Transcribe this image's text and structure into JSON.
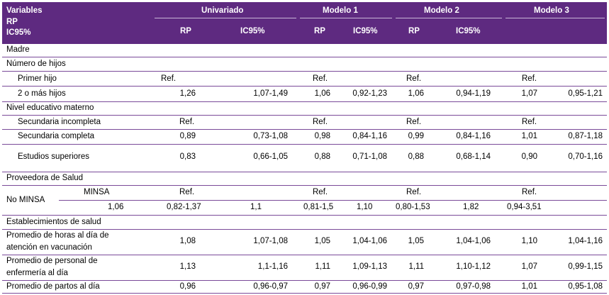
{
  "header": {
    "variables": "Variables",
    "rp_ic_line1": "RP",
    "rp_ic_line2": "IC95%",
    "groups": [
      "Univariado",
      "Modelo 1",
      "Modelo 2",
      "Modelo 3"
    ],
    "subcols": [
      "RP",
      "IC95%",
      "RP",
      "IC95%",
      "RP",
      "IC95%"
    ]
  },
  "rows": {
    "madre": "Madre",
    "numero_hijos": "Número de hijos",
    "primer_hijo": {
      "label": "Primer hijo",
      "u_rp": "Ref.",
      "m1_rp": "Ref.",
      "m2_rp": "Ref.",
      "m3_rp": "Ref."
    },
    "dos_mas": {
      "label": "2 o más hijos",
      "u_rp": "1,26",
      "u_ic": "1,07-1,49",
      "m1_rp": "1,06",
      "m1_ic": "0,92-1,23",
      "m2_rp": "1,06",
      "m2_ic": "0,94-1,19",
      "m3_rp": "1,07",
      "m3_ic": "0,95-1,21"
    },
    "nivel_educativo": "Nivel educativo materno",
    "sec_incompleta": {
      "label": "Secundaria incompleta",
      "u_rp": "Ref.",
      "m1_rp": "Ref.",
      "m2_rp": "Ref.",
      "m3_rp": "Ref."
    },
    "sec_completa": {
      "label": "Secundaria completa",
      "u_rp": "0,89",
      "u_ic": "0,73-1,08",
      "m1_rp": "0,98",
      "m1_ic": "0,84-1,16",
      "m2_rp": "0,99",
      "m2_ic": "0,84-1,16",
      "m3_rp": "1,01",
      "m3_ic": "0,87-1,18"
    },
    "superiores": {
      "label": "Estudios superiores",
      "u_rp": "0,83",
      "u_ic": "0,66-1,05",
      "m1_rp": "0,88",
      "m1_ic": "0,71-1,08",
      "m2_rp": "0,88",
      "m2_ic": "0,68-1,14",
      "m3_rp": "0,90",
      "m3_ic": "0,70-1,16"
    },
    "proveedora": "Proveedora de Salud",
    "no_minsa": "No MINSA",
    "minsa": {
      "label": "MINSA",
      "u_rp": "Ref.",
      "m1_rp": "Ref.",
      "m2_rp": "Ref.",
      "m3_rp": "Ref."
    },
    "minsa_vals": {
      "v1": "1,06",
      "v2": "0,82-1,37",
      "v3": "1,1",
      "v4": "0,81-1,5",
      "v5": "1,10",
      "v6": "0,80-1,53",
      "v7": "1,82",
      "v8": "0,94-3,51"
    },
    "establecimientos": "Establecimientos de salud",
    "horas": {
      "label": "Promedio de horas al día de atención en vacunación",
      "u_rp": "1,08",
      "u_ic": "1,07-1,08",
      "m1_rp": "1,05",
      "m1_ic": "1,04-1,06",
      "m2_rp": "1,05",
      "m2_ic": "1,04-1,06",
      "m3_rp": "1,10",
      "m3_ic": "1,04-1,16"
    },
    "personal": {
      "label": "Promedio de personal de enfermería al día",
      "u_rp": "1,13",
      "u_ic": "1,1-1,16",
      "m1_rp": "1,11",
      "m1_ic": "1,09-1,13",
      "m2_rp": "1,11",
      "m2_ic": "1,10-1,12",
      "m3_rp": "1,07",
      "m3_ic": "0,99-1,15"
    },
    "partos": {
      "label": "Promedio de partos al día",
      "u_rp": "0,96",
      "u_ic": "0,96-0,97",
      "m1_rp": "0,97",
      "m1_ic": "0,96-0,99",
      "m2_rp": "0,97",
      "m2_ic": "0,97-0,98",
      "m3_rp": "1,01",
      "m3_ic": "0,95-1,08"
    }
  }
}
